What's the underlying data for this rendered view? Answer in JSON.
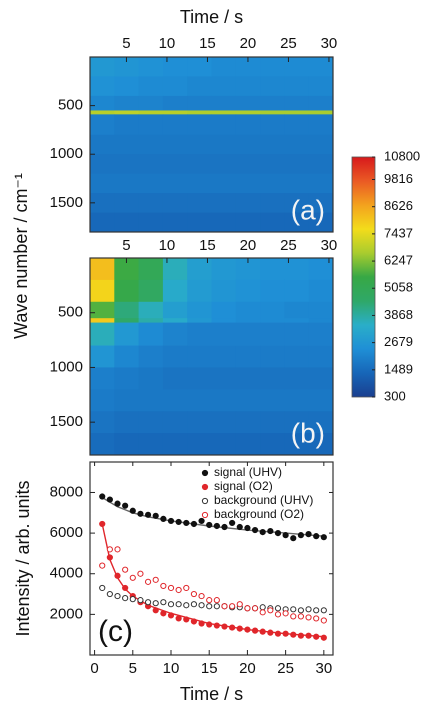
{
  "chart_data": [
    {
      "type": "heatmap",
      "xlabel": "Time / s",
      "ylabel": "Wave number / cm⁻¹",
      "annotation": "(a)",
      "x_bins": [
        0.5,
        3.5,
        6.5,
        9.5,
        12.5,
        15.5,
        18.5,
        21.5,
        24.5,
        27.5,
        30.5
      ],
      "y_bins": [
        0,
        200,
        400,
        550,
        590,
        800,
        1000,
        1200,
        1400,
        1600,
        1800
      ],
      "z": [
        [
          2700,
          2600,
          2500,
          2400,
          2400,
          2300,
          2300,
          2300,
          2300,
          2300
        ],
        [
          2500,
          2400,
          2300,
          2300,
          2200,
          2200,
          2200,
          2200,
          2200,
          2200
        ],
        [
          2200,
          2100,
          2100,
          2000,
          2000,
          2000,
          2000,
          2000,
          2000,
          2000
        ],
        [
          6800,
          6900,
          6800,
          6800,
          6700,
          6700,
          6700,
          6600,
          6600,
          6600
        ],
        [
          2000,
          1900,
          1900,
          1900,
          1900,
          1900,
          1900,
          1900,
          1900,
          1900
        ],
        [
          1800,
          1800,
          1800,
          1800,
          1800,
          1800,
          1800,
          1800,
          1800,
          1800
        ],
        [
          1700,
          1700,
          1700,
          1700,
          1700,
          1700,
          1700,
          1700,
          1700,
          1700
        ],
        [
          1800,
          1800,
          1800,
          1800,
          1800,
          1800,
          1800,
          1800,
          1800,
          1800
        ],
        [
          1600,
          1600,
          1600,
          1600,
          1600,
          1600,
          1600,
          1600,
          1600,
          1600
        ],
        [
          1400,
          1400,
          1400,
          1400,
          1400,
          1400,
          1400,
          1400,
          1400,
          1400
        ]
      ],
      "xlim": [
        0.5,
        30.5
      ],
      "ylim": [
        1800,
        0
      ],
      "xticks": [
        5,
        10,
        15,
        20,
        25,
        30
      ],
      "yticks": [
        500,
        1000,
        1500
      ],
      "zlim": [
        300,
        10800
      ],
      "colorscale": [
        "#1a3f8f",
        "#1766b8",
        "#1f8fd6",
        "#2aaec8",
        "#2fa868",
        "#37a845",
        "#a9cc2e",
        "#f3dc1b",
        "#f3a21e",
        "#ea5a24",
        "#d7191c"
      ],
      "colorbar_ticks": [
        300,
        1489,
        2679,
        3868,
        5058,
        6247,
        7437,
        8626,
        9816,
        10800
      ]
    },
    {
      "type": "heatmap",
      "annotation": "(b)",
      "x_bins": [
        0.5,
        3.5,
        6.5,
        9.5,
        12.5,
        15.5,
        18.5,
        21.5,
        24.5,
        27.5,
        30.5
      ],
      "y_bins": [
        0,
        200,
        400,
        550,
        590,
        800,
        1000,
        1200,
        1400,
        1600,
        1800
      ],
      "z": [
        [
          8200,
          5600,
          5000,
          3600,
          2900,
          2700,
          2600,
          2500,
          2500,
          2400
        ],
        [
          7800,
          5400,
          4700,
          3300,
          2800,
          2600,
          2500,
          2400,
          2400,
          2300
        ],
        [
          5800,
          4300,
          3600,
          2900,
          2600,
          2400,
          2300,
          2300,
          2200,
          2200
        ],
        [
          8000,
          4500,
          3800,
          3300,
          2700,
          2400,
          2300,
          2300,
          2300,
          2200
        ],
        [
          3600,
          2700,
          2300,
          2100,
          2000,
          2000,
          2000,
          2000,
          2000,
          2000
        ],
        [
          2600,
          2200,
          2000,
          1900,
          1900,
          1900,
          1900,
          1900,
          1900,
          1900
        ],
        [
          2000,
          1900,
          1800,
          1700,
          1700,
          1700,
          1700,
          1700,
          1700,
          1700
        ],
        [
          1900,
          1800,
          1800,
          1800,
          1800,
          1800,
          1800,
          1800,
          1800,
          1800
        ],
        [
          1700,
          1600,
          1600,
          1600,
          1600,
          1600,
          1600,
          1600,
          1600,
          1600
        ],
        [
          1500,
          1400,
          1400,
          1400,
          1400,
          1400,
          1400,
          1400,
          1400,
          1400
        ]
      ],
      "xlim": [
        0.5,
        30.5
      ],
      "ylim": [
        1800,
        0
      ],
      "xticks": [
        5,
        10,
        15,
        20,
        25,
        30
      ],
      "yticks": [
        500,
        1000,
        1500
      ],
      "zlim": [
        300,
        10800
      ],
      "colorscale": [
        "#1a3f8f",
        "#1766b8",
        "#1f8fd6",
        "#2aaec8",
        "#2fa868",
        "#37a845",
        "#a9cc2e",
        "#f3dc1b",
        "#f3a21e",
        "#ea5a24",
        "#d7191c"
      ]
    },
    {
      "type": "scatter",
      "xlabel": "Time / s",
      "ylabel": "Intensity / arb. units",
      "annotation": "(c)",
      "x": [
        1,
        2,
        3,
        4,
        5,
        6,
        7,
        8,
        9,
        10,
        11,
        12,
        13,
        14,
        15,
        16,
        17,
        18,
        19,
        20,
        21,
        22,
        23,
        24,
        25,
        26,
        27,
        28,
        29,
        30
      ],
      "series": [
        {
          "color": "#666666",
          "style": "line",
          "x": [
            1,
            3,
            5,
            7,
            10,
            15,
            20,
            25,
            30
          ],
          "values": [
            7750,
            7300,
            7000,
            6800,
            6600,
            6350,
            6150,
            6000,
            5850
          ]
        },
        {
          "color": "#e0262b",
          "style": "line",
          "x": [
            1,
            2,
            3,
            4,
            5,
            7,
            10,
            15,
            20,
            25,
            30
          ],
          "values": [
            6450,
            4700,
            3800,
            3250,
            2900,
            2450,
            2050,
            1550,
            1250,
            1050,
            900
          ]
        },
        {
          "name": "signal (UHV)",
          "color": "#111111",
          "marker": "filled",
          "values": [
            7800,
            7650,
            7450,
            7350,
            7100,
            6950,
            6900,
            6850,
            6700,
            6600,
            6550,
            6500,
            6450,
            6600,
            6400,
            6350,
            6300,
            6500,
            6300,
            6250,
            6150,
            6050,
            6100,
            6000,
            5900,
            5750,
            5900,
            5950,
            5850,
            5800
          ]
        },
        {
          "name": "signal (O2)",
          "color": "#e0262b",
          "marker": "filled",
          "values": [
            6450,
            4800,
            3900,
            3300,
            2900,
            2600,
            2400,
            2200,
            2050,
            1950,
            1800,
            1750,
            1650,
            1550,
            1500,
            1450,
            1400,
            1350,
            1300,
            1250,
            1200,
            1150,
            1100,
            1050,
            1050,
            1000,
            950,
            950,
            900,
            850
          ]
        },
        {
          "name": "background (UHV)",
          "color": "#333333",
          "marker": "open",
          "values": [
            3300,
            3000,
            2900,
            2800,
            2750,
            2700,
            2600,
            2550,
            2600,
            2500,
            2500,
            2450,
            2500,
            2450,
            2400,
            2400,
            2400,
            2350,
            2350,
            2300,
            2300,
            2350,
            2300,
            2300,
            2250,
            2250,
            2200,
            2250,
            2200,
            2200
          ]
        },
        {
          "name": "background (O2)",
          "color": "#e0262b",
          "marker": "open",
          "values": [
            4400,
            5200,
            5200,
            4200,
            3800,
            4000,
            3600,
            3700,
            3400,
            3300,
            3200,
            3300,
            3000,
            2900,
            2700,
            2700,
            2400,
            2400,
            2500,
            2300,
            2300,
            2100,
            2200,
            2000,
            2050,
            1900,
            1900,
            1850,
            1800,
            1700
          ]
        }
      ],
      "xlim": [
        -0.6,
        31.2
      ],
      "ylim": [
        0,
        9500
      ],
      "xticks": [
        0,
        5,
        10,
        15,
        20,
        25,
        30
      ],
      "yticks": [
        2000,
        4000,
        6000,
        8000
      ],
      "legend": "upper right"
    }
  ]
}
